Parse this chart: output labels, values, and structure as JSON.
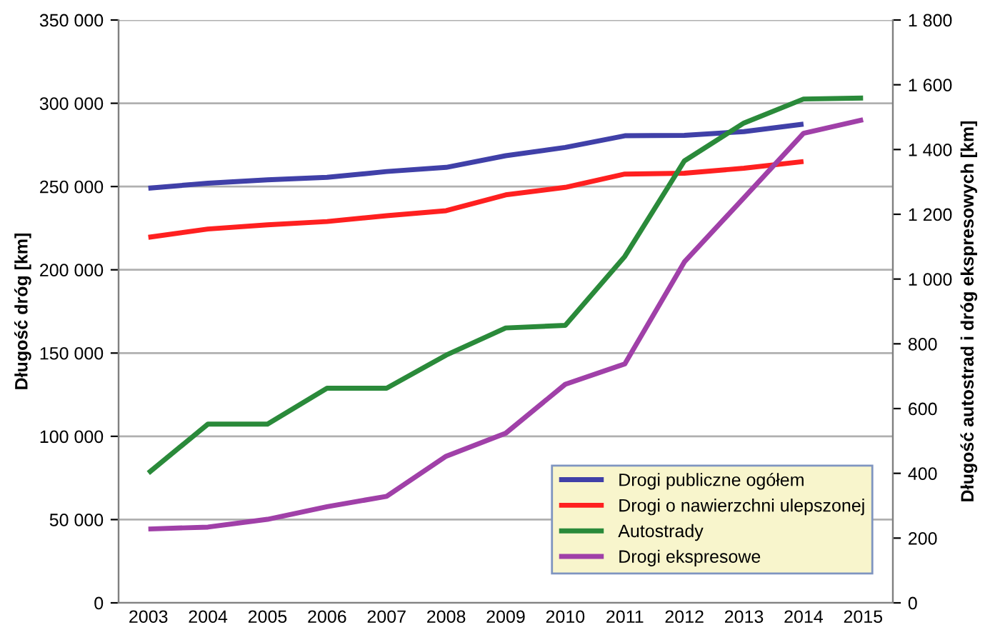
{
  "chart_data": {
    "type": "line",
    "categories": [
      "2003",
      "2004",
      "2005",
      "2006",
      "2007",
      "2008",
      "2009",
      "2010",
      "2011",
      "2012",
      "2013",
      "2014",
      "2015"
    ],
    "ylabel": "Długość dróg [km]",
    "y2label": "Długość autostrad i dróg ekspresowych [km]",
    "series": [
      {
        "name": "Drogi publiczne ogółem",
        "color": "#4040a8",
        "values": [
          249000,
          252000,
          254000,
          255500,
          259000,
          261500,
          268500,
          273500,
          280500,
          280700,
          283000,
          287500,
          null
        ]
      },
      {
        "name": "Drogi o nawierzchni ulepszonej",
        "color": "#ff2020",
        "values": [
          219500,
          224500,
          227000,
          229000,
          232500,
          235500,
          245000,
          249500,
          257500,
          258000,
          261000,
          265000,
          null
        ]
      },
      {
        "name": "Autostrady",
        "color": "#2a8a3a",
        "axis": "y2",
        "values": [
          401,
          552,
          552,
          663,
          663,
          765,
          849,
          857,
          1070,
          1365,
          1482,
          1556,
          1559
        ]
      },
      {
        "name": "Drogi ekspresowe",
        "color": "#a040a8",
        "axis": "y2",
        "values": [
          228,
          234,
          258,
          297,
          329,
          453,
          524,
          675,
          738,
          1053,
          1251,
          1450,
          1492
        ]
      }
    ],
    "ylim": [
      0,
      350000
    ],
    "yticks": [
      0,
      {
        "value": 50000,
        "label": "50 000"
      },
      {
        "value": 100000,
        "label": "100 000"
      },
      {
        "value": 150000,
        "label": "150 000"
      },
      {
        "value": 200000,
        "label": "200 000"
      },
      {
        "value": 250000,
        "label": "250 000"
      },
      {
        "value": 300000,
        "label": "300 000"
      },
      {
        "value": 350000,
        "label": "350 000"
      }
    ],
    "y2lim": [
      0,
      1800
    ],
    "y2ticks": [
      0,
      200,
      400,
      600,
      800,
      {
        "value": 1000,
        "label": "1 000"
      },
      {
        "value": 1200,
        "label": "1 200"
      },
      {
        "value": 1400,
        "label": "1 400"
      },
      {
        "value": 1600,
        "label": "1 600"
      },
      {
        "value": 1800,
        "label": "1 800"
      }
    ],
    "grid": "y",
    "legend": "bottom right",
    "marker": "none",
    "line_style": "solid"
  }
}
